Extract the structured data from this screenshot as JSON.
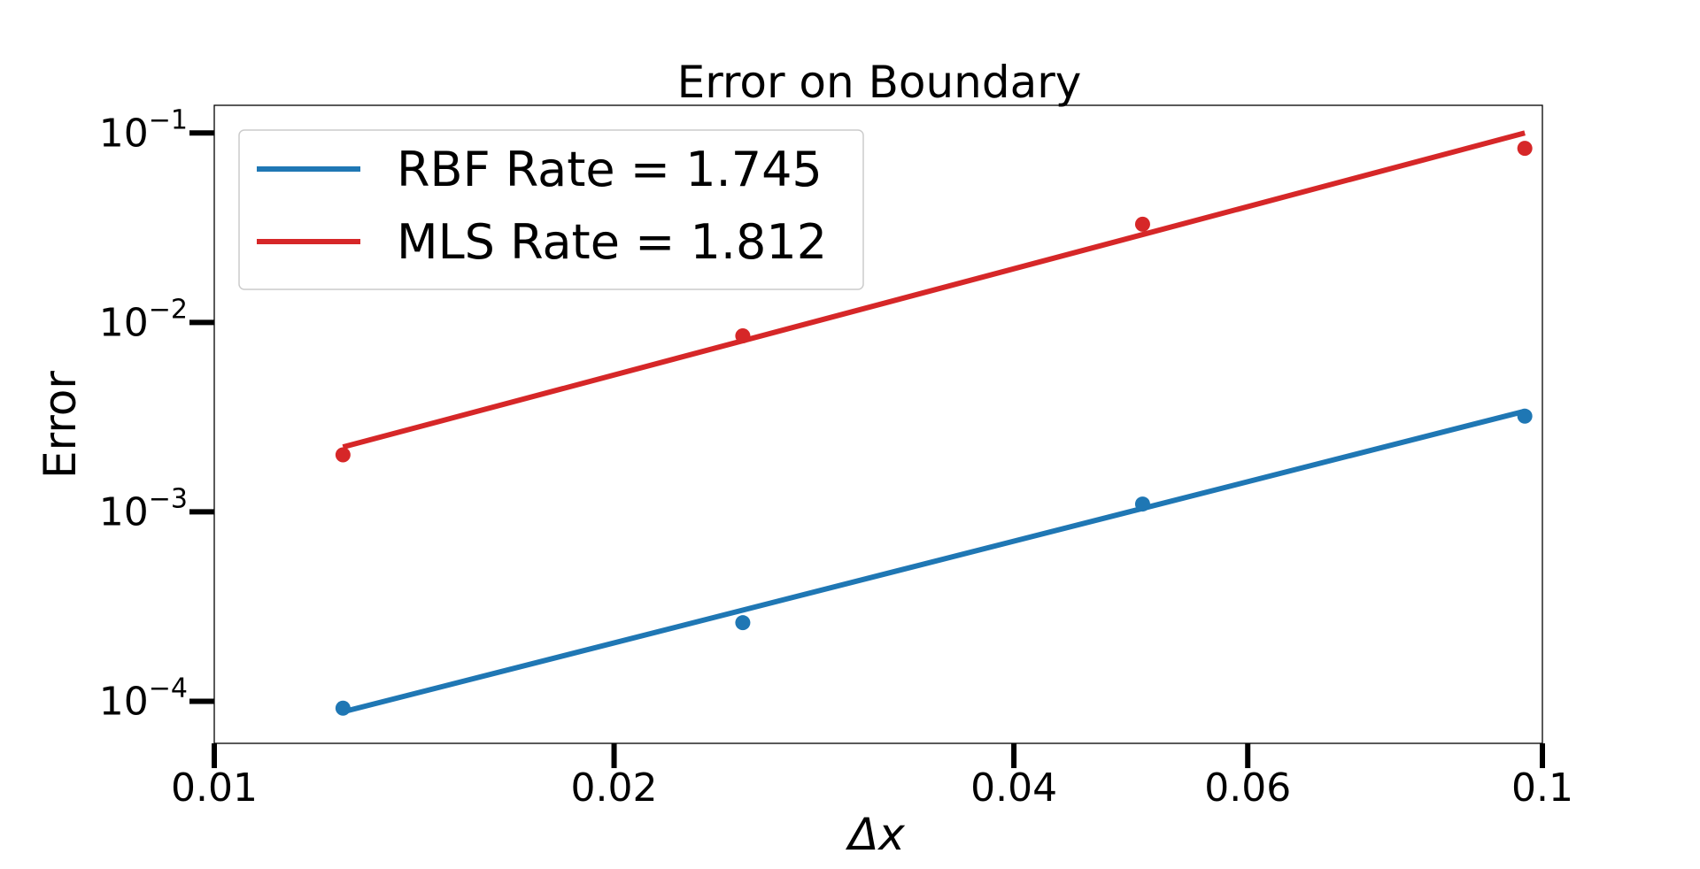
{
  "chart_data": {
    "type": "scatter",
    "title": "Error on Boundary",
    "xlabel": "Δx",
    "ylabel": "Error",
    "xscale": "log",
    "yscale": "log",
    "xlim": [
      0.01,
      0.1
    ],
    "ylim": [
      6e-05,
      0.14
    ],
    "x_ticks": [
      {
        "value": 0.01,
        "label": "0.01"
      },
      {
        "value": 0.02,
        "label": "0.02"
      },
      {
        "value": 0.04,
        "label": "0.04"
      },
      {
        "value": 0.06,
        "label": "0.06"
      },
      {
        "value": 0.1,
        "label": "0.1"
      }
    ],
    "y_ticks": [
      {
        "value": 0.0001,
        "base": "10",
        "exp": "−4"
      },
      {
        "value": 0.001,
        "base": "10",
        "exp": "−3"
      },
      {
        "value": 0.01,
        "base": "10",
        "exp": "−2"
      },
      {
        "value": 0.1,
        "base": "10",
        "exp": "−1"
      }
    ],
    "legend_position": "top-left",
    "grid": false,
    "series": [
      {
        "name": "RBF Rate = 1.745",
        "color": "#1f77b4",
        "points": [
          {
            "x": 0.0125,
            "y": 9.2e-05
          },
          {
            "x": 0.025,
            "y": 0.00026
          },
          {
            "x": 0.05,
            "y": 0.0011
          },
          {
            "x": 0.097,
            "y": 0.0032
          }
        ],
        "fit": [
          {
            "x": 0.0125,
            "y": 8.8e-05
          },
          {
            "x": 0.097,
            "y": 0.0034
          }
        ]
      },
      {
        "name": "MLS Rate = 1.812",
        "color": "#d62728",
        "points": [
          {
            "x": 0.0125,
            "y": 0.002
          },
          {
            "x": 0.025,
            "y": 0.0085
          },
          {
            "x": 0.05,
            "y": 0.033
          },
          {
            "x": 0.097,
            "y": 0.083
          }
        ],
        "fit": [
          {
            "x": 0.0125,
            "y": 0.0022
          },
          {
            "x": 0.097,
            "y": 0.1
          }
        ]
      }
    ]
  }
}
